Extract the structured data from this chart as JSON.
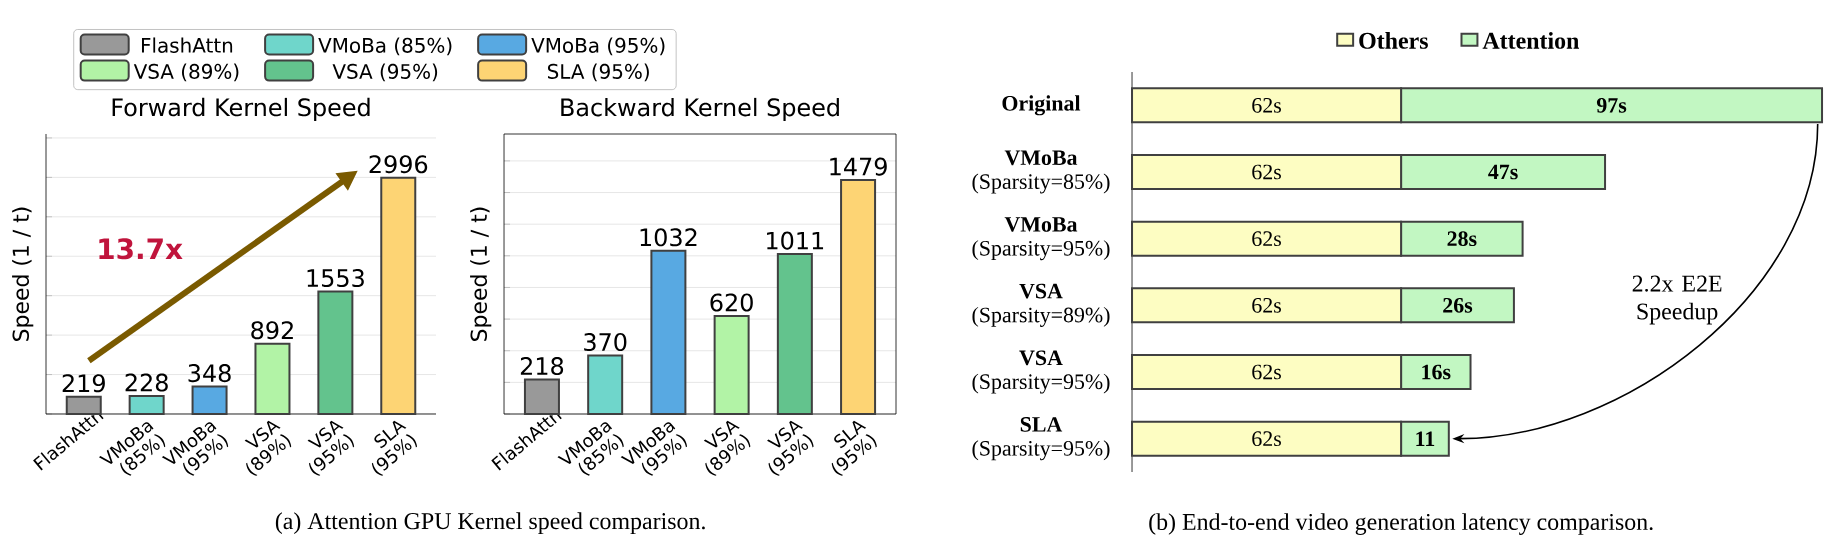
{
  "chart_data": [
    {
      "type": "bar",
      "title": "Forward Kernel Speed",
      "ylabel": "Speed (1 / t)",
      "categories": [
        "FlashAttn",
        "VMoBa (85%)",
        "VMoBa (95%)",
        "VSA (89%)",
        "VSA (95%)",
        "SLA (95%)"
      ],
      "series": [
        {
          "name": "FlashAttn",
          "color": "#999999",
          "values": [
            219,
            null,
            null,
            null,
            null,
            null
          ]
        },
        {
          "name": "VMoBa (85%)",
          "color": "#6fd6cb",
          "values": [
            null,
            228,
            null,
            null,
            null,
            null
          ]
        },
        {
          "name": "VMoBa (95%)",
          "color": "#58a9e2",
          "values": [
            null,
            null,
            348,
            null,
            null,
            null
          ]
        },
        {
          "name": "VSA (89%)",
          "color": "#b2f3a6",
          "values": [
            null,
            null,
            null,
            892,
            null,
            null
          ]
        },
        {
          "name": "VSA (95%)",
          "color": "#63c38d",
          "values": [
            null,
            null,
            null,
            null,
            1553,
            null
          ]
        },
        {
          "name": "SLA (95%)",
          "color": "#fdd474",
          "values": [
            null,
            null,
            null,
            null,
            null,
            2996
          ]
        }
      ],
      "data_labels": true,
      "ylim": [
        0,
        3550
      ],
      "yticks": [
        {
          "value": 0,
          "label": null
        },
        {
          "value": 500,
          "label": null
        },
        {
          "value": 1000,
          "label": null
        },
        {
          "value": 1500,
          "label": null
        },
        {
          "value": 2000,
          "label": null
        },
        {
          "value": 2500,
          "label": null
        },
        {
          "value": 3000,
          "label": null
        },
        {
          "value": 3500,
          "label": null
        }
      ],
      "grid": "y",
      "legend": "top",
      "tick_labels": "x",
      "annotations": [
        "13.7x",
        "(a) Attention GPU Kernel speed comparison."
      ]
    },
    {
      "type": "bar",
      "title": "Backward Kernel Speed",
      "ylabel": "Speed (1 / t)",
      "categories": [
        "FlashAttn",
        "VMoBa (85%)",
        "VMoBa (95%)",
        "VSA (89%)",
        "VSA (95%)",
        "SLA (95%)"
      ],
      "values": [
        218,
        370,
        1032,
        620,
        1011,
        1479
      ],
      "colors": [
        "#999999",
        "#6fd6cb",
        "#58a9e2",
        "#b2f3a6",
        "#63c38d",
        "#fdd474"
      ],
      "data_labels": true,
      "ylim": [
        0,
        1770
      ],
      "yticks": [
        {
          "value": 0,
          "label": null
        },
        {
          "value": 200,
          "label": null
        },
        {
          "value": 400,
          "label": null
        },
        {
          "value": 600,
          "label": null
        },
        {
          "value": 800,
          "label": null
        },
        {
          "value": 1000,
          "label": null
        },
        {
          "value": 1200,
          "label": null
        },
        {
          "value": 1400,
          "label": null
        },
        {
          "value": 1600,
          "label": null
        }
      ],
      "grid": "y",
      "tick_labels": "x"
    },
    {
      "type": "bar",
      "orientation": "horizontal",
      "stacked": true,
      "categories": [
        "**Original**",
        "**VMoBa** (Sparsity=85%)",
        "**VMoBa** (Sparsity=95%)",
        "**VSA** (Sparsity=89%)",
        "**VSA** (Sparsity=95%)",
        "**SLA** (Sparsity=95%)"
      ],
      "series": [
        {
          "name": "Others",
          "color": "#fdfdc2",
          "values": [
            62,
            62,
            62,
            62,
            62,
            62
          ],
          "value_labels": [
            "62s",
            "62s",
            "62s",
            "62s",
            "62s",
            "62s"
          ]
        },
        {
          "name": "Attention",
          "color": "#c2f7c2",
          "values": [
            97,
            47,
            28,
            26,
            16,
            11
          ],
          "value_labels": [
            "97s",
            "47s",
            "28s",
            "26s",
            "16s",
            "11"
          ]
        }
      ],
      "legend": "top",
      "tick_labels": "y",
      "annotations": [
        "2.2x E2E Speedup",
        "(b) End-to-end video generation latency comparison."
      ]
    }
  ]
}
